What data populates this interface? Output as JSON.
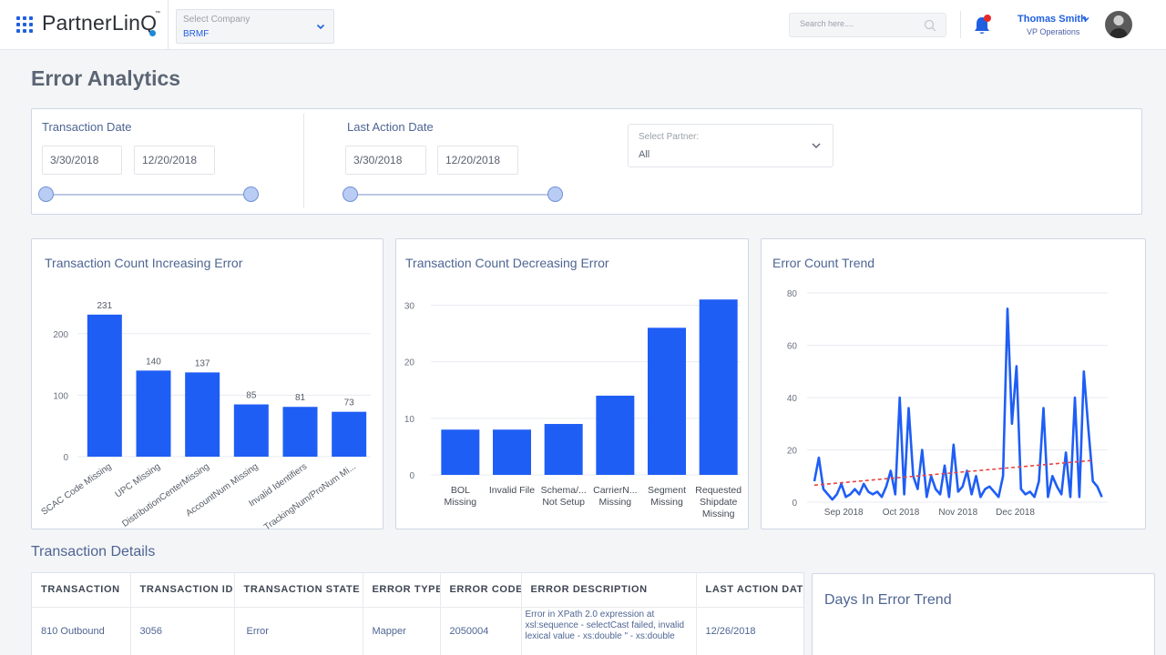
{
  "header": {
    "logo_text": "PartnerLinQ",
    "logo_tm": "™",
    "company_select": {
      "label": "Select Company",
      "value": "BRMF"
    },
    "search": {
      "placeholder": "Search here...."
    },
    "user": {
      "name": "Thomas Smith",
      "role": "VP Operations"
    }
  },
  "page": {
    "title": "Error Analytics"
  },
  "filters": {
    "transaction_date": {
      "label": "Transaction Date",
      "from": "3/30/2018",
      "to": "12/20/2018"
    },
    "last_action_date": {
      "label": "Last Action Date",
      "from": "3/30/2018",
      "to": "12/20/2018"
    },
    "partner_select": {
      "label": "Select Partner:",
      "value": "All"
    }
  },
  "chart_data": [
    {
      "type": "bar",
      "title": "Transaction Count Increasing Error",
      "categories": [
        "SCAC Code Missing",
        "UPC Missing",
        "DistributionCenterMissing",
        "AccountNum Missing",
        "Invalid Identifiers",
        "TrackingNum/ProNum Mi..."
      ],
      "values": [
        231,
        140,
        137,
        85,
        81,
        73
      ],
      "data_labels": [
        "231",
        "140",
        "137",
        "85",
        "81",
        "73"
      ],
      "ylim": [
        0,
        250
      ],
      "yticks": [
        "0",
        "100",
        "200"
      ],
      "grid": true,
      "color": "#1f5ef5"
    },
    {
      "type": "bar",
      "title": "Transaction Count Decreasing Error",
      "categories": [
        [
          "BOL",
          "Missing"
        ],
        [
          "Invalid File"
        ],
        [
          "Schema/...",
          "Not Setup"
        ],
        [
          "CarrierN...",
          "Missing"
        ],
        [
          "Segment",
          "Missing"
        ],
        [
          "Requested",
          "Shipdate",
          "Missing"
        ]
      ],
      "values": [
        8,
        8,
        9,
        14,
        26,
        31
      ],
      "ylim": [
        0,
        32
      ],
      "yticks": [
        "0",
        "10",
        "20",
        "30"
      ],
      "grid": true,
      "color": "#1f5ef5"
    },
    {
      "type": "line",
      "title": "Error Count Trend",
      "x_ticks": [
        "Sep 2018",
        "Oct 2018",
        "Nov 2018",
        "Dec 2018"
      ],
      "x_tick_positions": [
        0.1,
        0.295,
        0.49,
        0.685
      ],
      "ylim": [
        0,
        80
      ],
      "yticks": [
        "0",
        "20",
        "40",
        "60",
        "80"
      ],
      "grid": true,
      "series": [
        {
          "values": [
            8,
            17,
            5,
            3,
            1,
            3,
            7,
            2,
            3,
            5,
            3,
            7,
            4,
            3,
            4,
            2,
            6,
            12,
            3,
            40,
            3,
            36,
            10,
            5,
            20,
            2,
            10,
            5,
            3,
            14,
            2,
            22,
            4,
            6,
            12,
            3,
            10,
            2,
            5,
            6,
            4,
            2,
            10,
            74,
            30,
            52,
            5,
            3,
            4,
            2,
            8,
            36,
            2,
            10,
            6,
            3,
            19,
            2,
            40,
            2,
            50,
            28,
            8,
            6,
            2
          ],
          "color": "#1f5ef5"
        },
        {
          "type": "trendline",
          "values": [
            6.5,
            16
          ],
          "color": "#e84545",
          "dashed": true
        }
      ]
    }
  ],
  "transaction_details": {
    "title": "Transaction Details",
    "columns": [
      "TRANSACTION",
      "TRANSACTION ID",
      "TRANSACTION STATE",
      "ERROR TYPE",
      "ERROR CODE",
      "ERROR DESCRIPTION",
      "LAST ACTION DATE"
    ],
    "rows": [
      {
        "transaction": "810 Outbound",
        "transaction_id": "3056",
        "state": "Error",
        "error_type": "Mapper",
        "error_code": "2050004",
        "error_description": "Error in XPath 2.0 expression at xsl:sequence - selectCast failed, invalid lexical value - xs:double \" - xs:double",
        "last_action_date": "12/26/2018"
      }
    ]
  },
  "days_in_error_trend": {
    "title": "Days In Error Trend"
  },
  "colors": {
    "accent": "#1f5fe0",
    "title": "#4e6593",
    "bar": "#1f5ef5",
    "trend": "#e84545",
    "notification": "#e82828"
  }
}
